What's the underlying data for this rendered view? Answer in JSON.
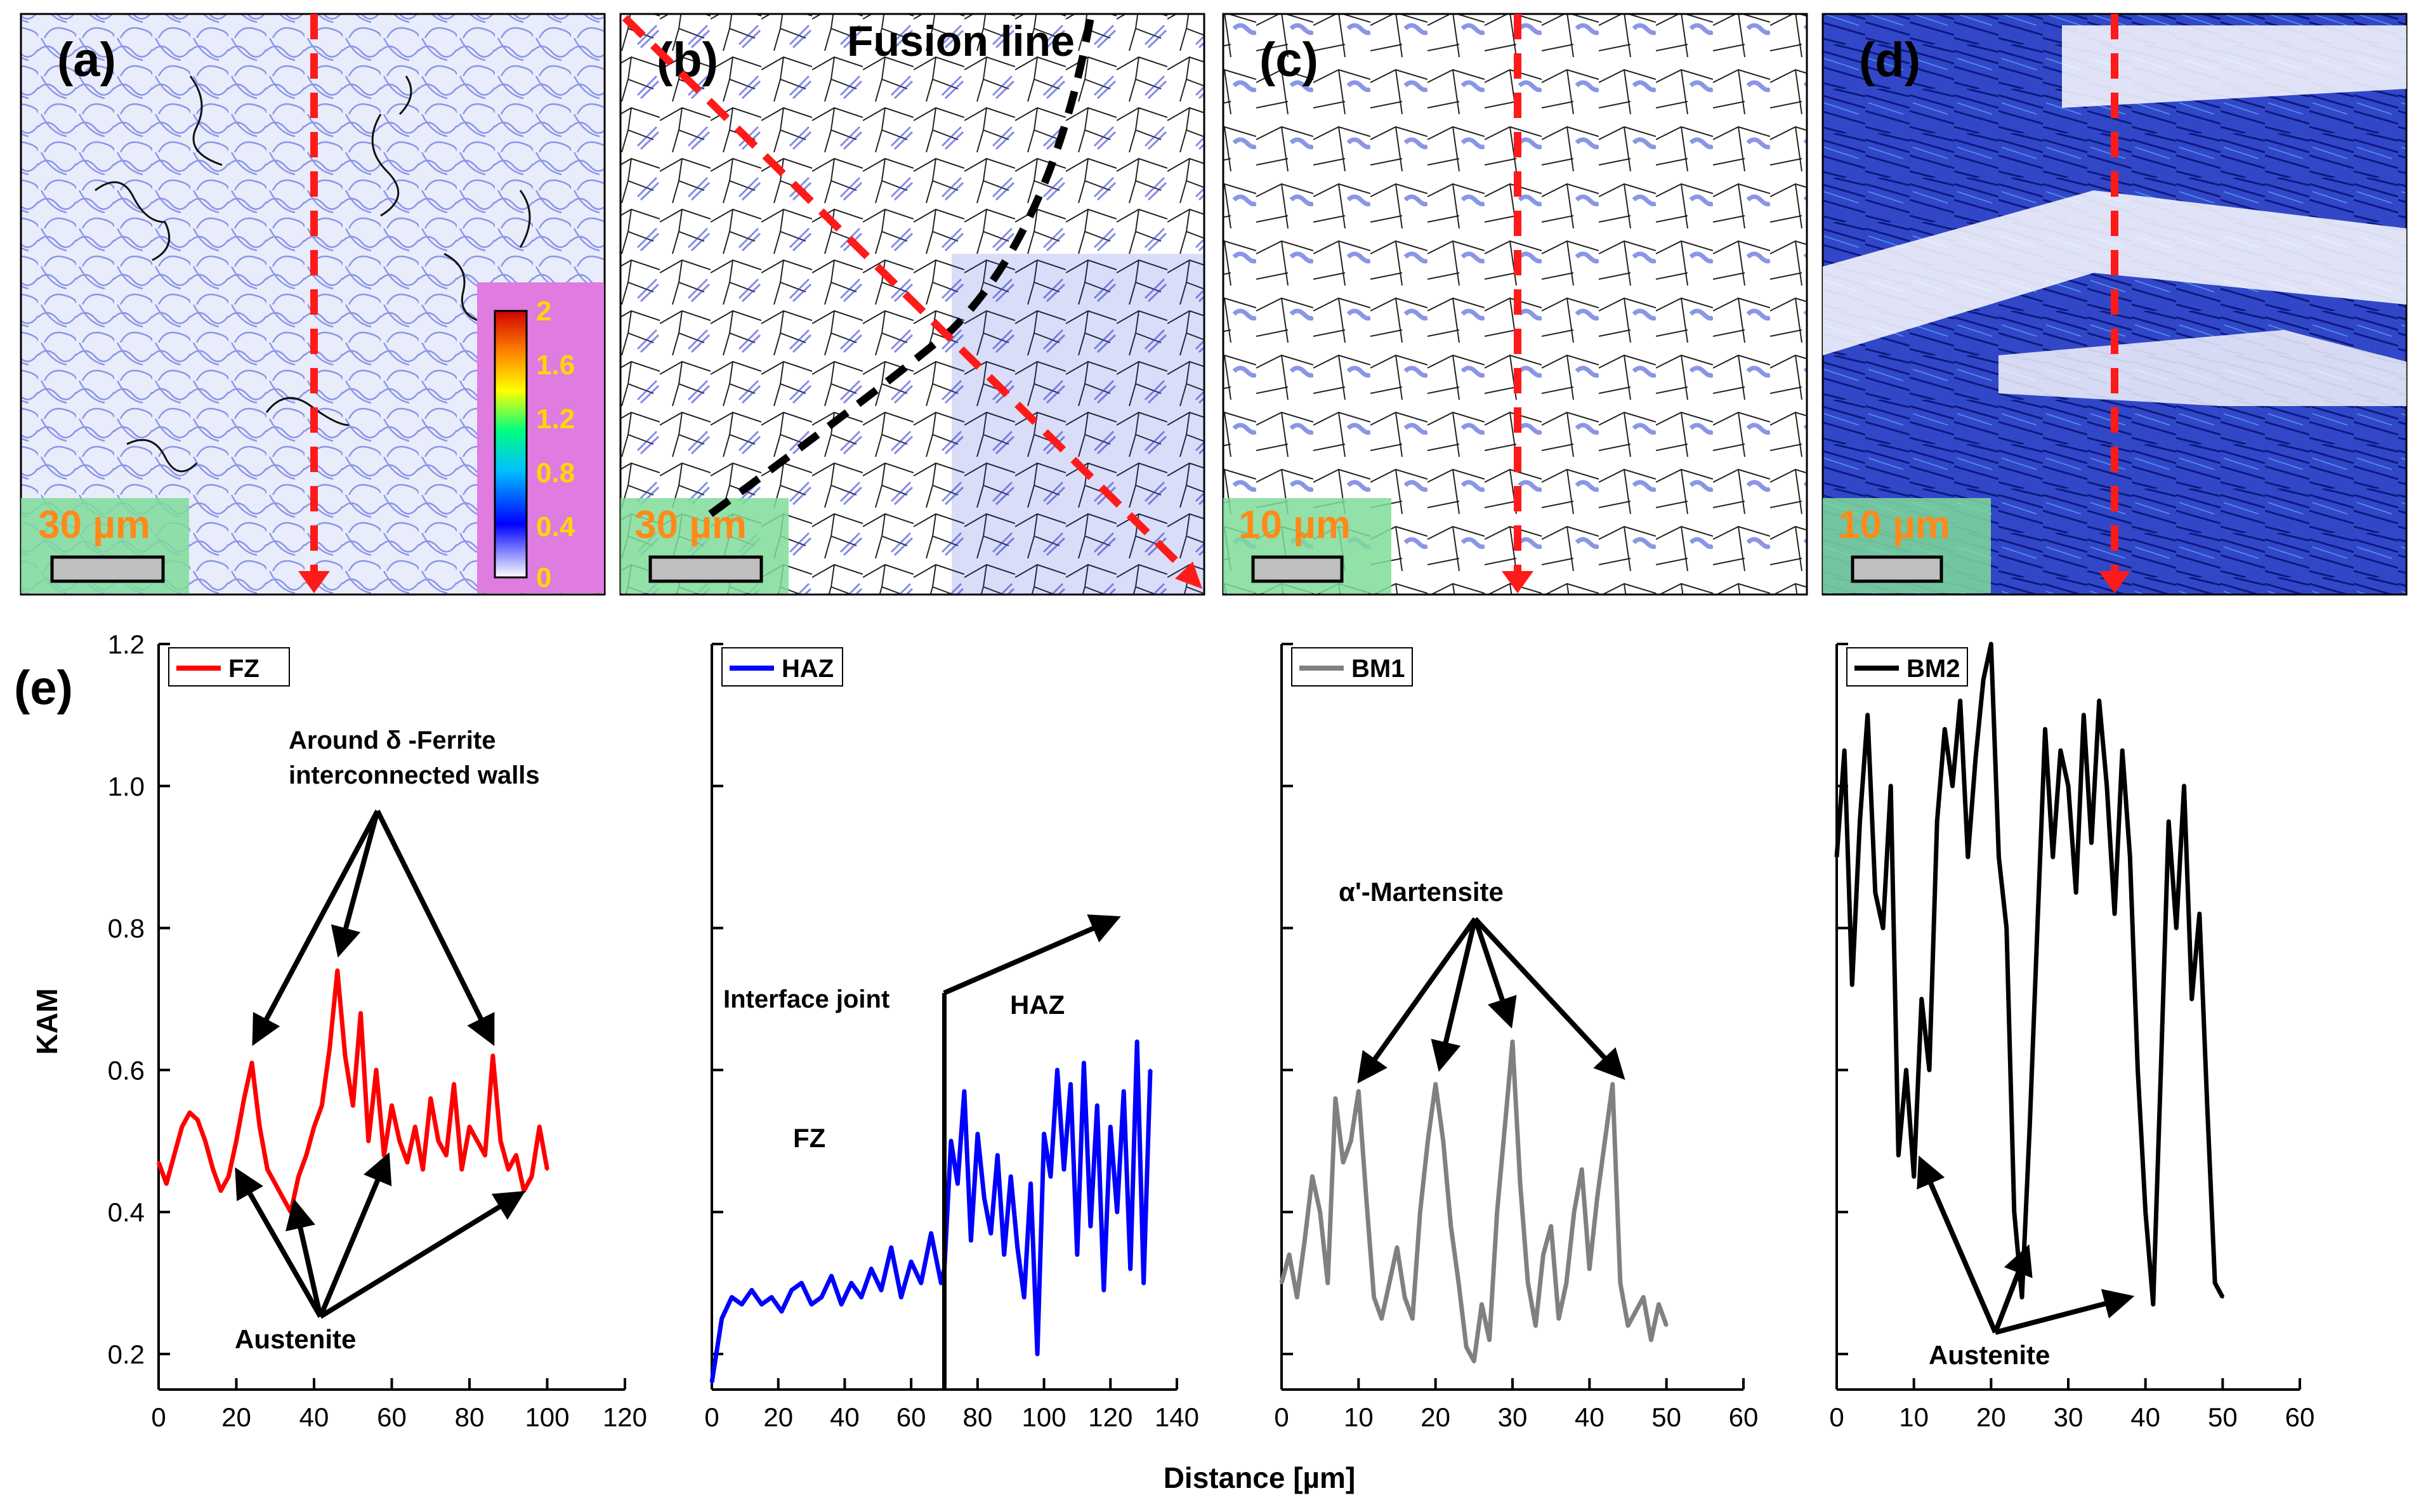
{
  "colors": {
    "fz": "#ff0000",
    "haz": "#0000ff",
    "bm1": "#808080",
    "bm2": "#000000",
    "arrow_red": "#ff1a1a",
    "fusion_line": "#000000",
    "scalebar_bg": "#7fdc9a",
    "colorbar_bg": "#e07be0",
    "micro_blue": "#2a3fd0",
    "micro_bg": "#eef0fb"
  },
  "maps": [
    {
      "label": "(a)",
      "scale": "30 µm"
    },
    {
      "label": "(b)",
      "scale": "30 µm",
      "annotation": "Fusion line"
    },
    {
      "label": "(c)",
      "scale": "10 µm"
    },
    {
      "label": "(d)",
      "scale": "10 µm"
    }
  ],
  "colorbar": {
    "ticks": [
      "2",
      "1.6",
      "1.2",
      "0.8",
      "0.4",
      "0"
    ]
  },
  "chart_data": {
    "type": "line",
    "panel_label": "(e)",
    "ylabel": "KAM",
    "xlabel": "Distance [µm]",
    "ylim": [
      0.15,
      1.2
    ],
    "yticks": [
      "0.2",
      "0.4",
      "0.6",
      "0.8",
      "1.0",
      "1.2"
    ],
    "panels": [
      {
        "name": "FZ",
        "legend": "FZ",
        "xlim": [
          0,
          120
        ],
        "xticks": [
          "0",
          "20",
          "40",
          "60",
          "80",
          "100",
          "120"
        ],
        "x": [
          0,
          2,
          4,
          6,
          8,
          10,
          12,
          14,
          16,
          18,
          20,
          22,
          24,
          26,
          28,
          30,
          32,
          34,
          36,
          38,
          40,
          42,
          44,
          46,
          48,
          50,
          52,
          54,
          56,
          58,
          60,
          62,
          64,
          66,
          68,
          70,
          72,
          74,
          76,
          78,
          80,
          82,
          84,
          86,
          88,
          90,
          92,
          94,
          96,
          98,
          100
        ],
        "values": [
          0.47,
          0.44,
          0.48,
          0.52,
          0.54,
          0.53,
          0.5,
          0.46,
          0.43,
          0.45,
          0.5,
          0.56,
          0.61,
          0.52,
          0.46,
          0.44,
          0.42,
          0.4,
          0.45,
          0.48,
          0.52,
          0.55,
          0.63,
          0.74,
          0.62,
          0.55,
          0.68,
          0.5,
          0.6,
          0.48,
          0.55,
          0.5,
          0.47,
          0.52,
          0.46,
          0.56,
          0.5,
          0.48,
          0.58,
          0.46,
          0.52,
          0.5,
          0.48,
          0.62,
          0.5,
          0.46,
          0.48,
          0.43,
          0.45,
          0.52,
          0.46
        ],
        "annotations": [
          {
            "text_lines": [
              "Around δ -Ferrite",
              "interconnected walls"
            ]
          },
          {
            "text_lines": [
              "Austenite"
            ]
          }
        ]
      },
      {
        "name": "HAZ",
        "legend": "HAZ",
        "xlim": [
          0,
          140
        ],
        "xticks": [
          "0",
          "20",
          "40",
          "60",
          "80",
          "100",
          "120",
          "140"
        ],
        "x": [
          0,
          3,
          6,
          9,
          12,
          15,
          18,
          21,
          24,
          27,
          30,
          33,
          36,
          39,
          42,
          45,
          48,
          51,
          54,
          57,
          60,
          63,
          66,
          69,
          70,
          72,
          74,
          76,
          78,
          80,
          82,
          84,
          86,
          88,
          90,
          92,
          94,
          96,
          98,
          100,
          102,
          104,
          106,
          108,
          110,
          112,
          114,
          116,
          118,
          120,
          122,
          124,
          126,
          128,
          130,
          132
        ],
        "values": [
          0.16,
          0.25,
          0.28,
          0.27,
          0.29,
          0.27,
          0.28,
          0.26,
          0.29,
          0.3,
          0.27,
          0.28,
          0.31,
          0.27,
          0.3,
          0.28,
          0.32,
          0.29,
          0.35,
          0.28,
          0.33,
          0.3,
          0.37,
          0.3,
          0.32,
          0.5,
          0.44,
          0.57,
          0.36,
          0.51,
          0.42,
          0.37,
          0.48,
          0.34,
          0.45,
          0.35,
          0.28,
          0.44,
          0.2,
          0.51,
          0.45,
          0.6,
          0.46,
          0.58,
          0.34,
          0.61,
          0.38,
          0.55,
          0.29,
          0.52,
          0.4,
          0.57,
          0.32,
          0.64,
          0.3,
          0.6
        ],
        "annotations": [
          {
            "text_lines": [
              "Interface joint"
            ]
          },
          {
            "text_lines": [
              "FZ"
            ]
          },
          {
            "text_lines": [
              "HAZ"
            ]
          }
        ]
      },
      {
        "name": "BM1",
        "legend": "BM1",
        "xlim": [
          0,
          60
        ],
        "xticks": [
          "0",
          "10",
          "20",
          "30",
          "40",
          "50",
          "60"
        ],
        "x": [
          0,
          1,
          2,
          3,
          4,
          5,
          6,
          7,
          8,
          9,
          10,
          11,
          12,
          13,
          14,
          15,
          16,
          17,
          18,
          19,
          20,
          21,
          22,
          23,
          24,
          25,
          26,
          27,
          28,
          29,
          30,
          31,
          32,
          33,
          34,
          35,
          36,
          37,
          38,
          39,
          40,
          41,
          42,
          43,
          44,
          45,
          46,
          47,
          48,
          49,
          50
        ],
        "values": [
          0.3,
          0.34,
          0.28,
          0.36,
          0.45,
          0.4,
          0.3,
          0.56,
          0.47,
          0.5,
          0.57,
          0.42,
          0.28,
          0.25,
          0.3,
          0.35,
          0.28,
          0.25,
          0.4,
          0.5,
          0.58,
          0.5,
          0.38,
          0.3,
          0.21,
          0.19,
          0.27,
          0.22,
          0.4,
          0.52,
          0.64,
          0.44,
          0.3,
          0.24,
          0.34,
          0.38,
          0.25,
          0.3,
          0.4,
          0.46,
          0.32,
          0.42,
          0.5,
          0.58,
          0.3,
          0.24,
          0.26,
          0.28,
          0.22,
          0.27,
          0.24
        ],
        "annotations": [
          {
            "text_lines": [
              "α'-Martensite"
            ]
          }
        ]
      },
      {
        "name": "BM2",
        "legend": "BM2",
        "xlim": [
          0,
          60
        ],
        "xticks": [
          "0",
          "10",
          "20",
          "30",
          "40",
          "50",
          "60"
        ],
        "x": [
          0,
          1,
          2,
          3,
          4,
          5,
          6,
          7,
          8,
          9,
          10,
          11,
          12,
          13,
          14,
          15,
          16,
          17,
          18,
          19,
          20,
          21,
          22,
          23,
          24,
          25,
          26,
          27,
          28,
          29,
          30,
          31,
          32,
          33,
          34,
          35,
          36,
          37,
          38,
          39,
          40,
          41,
          42,
          43,
          44,
          45,
          46,
          47,
          48,
          49,
          50
        ],
        "values": [
          0.9,
          1.05,
          0.72,
          0.95,
          1.1,
          0.85,
          0.8,
          1.0,
          0.48,
          0.6,
          0.45,
          0.7,
          0.6,
          0.95,
          1.08,
          1.0,
          1.12,
          0.9,
          1.04,
          1.15,
          1.2,
          0.9,
          0.8,
          0.4,
          0.28,
          0.52,
          0.8,
          1.08,
          0.9,
          1.05,
          1.0,
          0.85,
          1.1,
          0.92,
          1.12,
          1.0,
          0.82,
          1.05,
          0.9,
          0.6,
          0.4,
          0.27,
          0.6,
          0.95,
          0.8,
          1.0,
          0.7,
          0.82,
          0.55,
          0.3,
          0.28
        ],
        "annotations": [
          {
            "text_lines": [
              "Austenite"
            ]
          }
        ]
      }
    ]
  }
}
